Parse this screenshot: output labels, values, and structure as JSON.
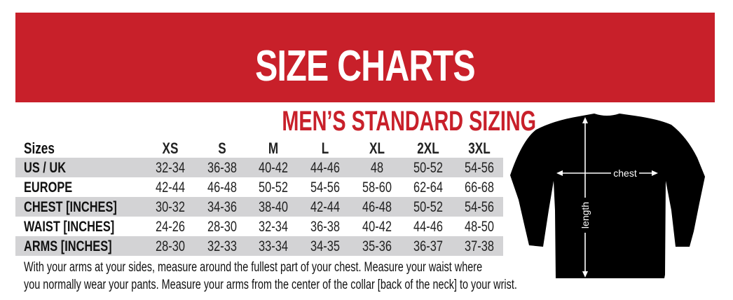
{
  "title": "SIZE CHARTS",
  "subtitle": "MEN’S STANDARD SIZING",
  "colors": {
    "accent": "#c8202a",
    "row_shade": "#d3d3d5"
  },
  "table": {
    "header_label": "Sizes",
    "sizes": [
      "XS",
      "S",
      "M",
      "L",
      "XL",
      "2XL",
      "3XL"
    ],
    "rows": [
      {
        "label": "US / UK",
        "values": [
          "32-34",
          "36-38",
          "40-42",
          "44-46",
          "48",
          "50-52",
          "54-56"
        ]
      },
      {
        "label": "EUROPE",
        "values": [
          "42-44",
          "46-48",
          "50-52",
          "54-56",
          "58-60",
          "62-64",
          "66-68"
        ]
      },
      {
        "label": "CHEST [INCHES]",
        "values": [
          "30-32",
          "34-36",
          "38-40",
          "42-44",
          "46-48",
          "50-52",
          "54-56"
        ]
      },
      {
        "label": "WAIST [INCHES]",
        "values": [
          "24-26",
          "28-30",
          "32-34",
          "36-38",
          "40-42",
          "44-46",
          "48-50"
        ]
      },
      {
        "label": "ARMS [INCHES]",
        "values": [
          "28-30",
          "32-33",
          "33-34",
          "34-35",
          "35-36",
          "36-37",
          "37-38"
        ]
      }
    ]
  },
  "notes": [
    "With your arms at your sides, measure around the fullest part of your chest. Measure your waist where",
    "you normally wear your pants. Measure your arms from the center of the collar [back of the neck] to your wrist."
  ],
  "diagram": {
    "chest_label": "chest",
    "length_label": "length"
  }
}
